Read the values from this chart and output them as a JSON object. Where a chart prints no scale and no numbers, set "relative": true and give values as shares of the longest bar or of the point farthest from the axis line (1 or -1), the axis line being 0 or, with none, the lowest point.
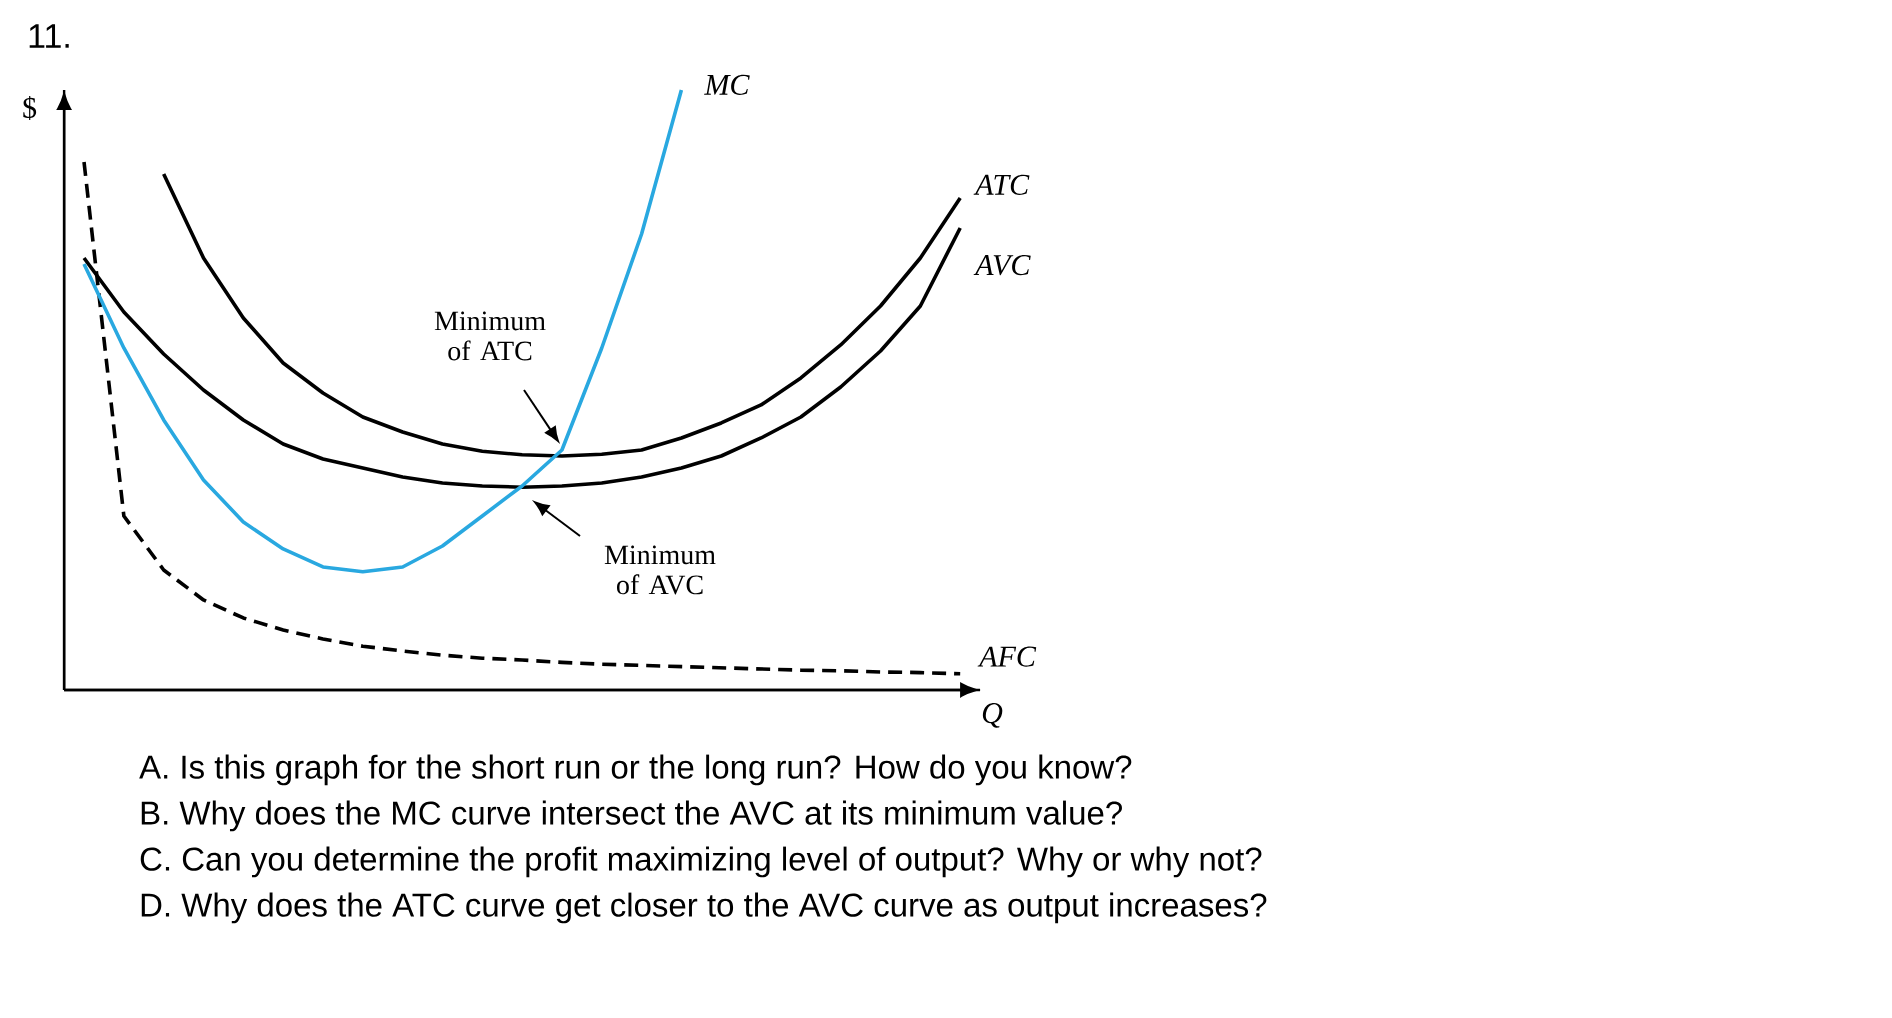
{
  "chart_data": {
    "type": "line",
    "relative": true,
    "title": "11.",
    "xlabel": "Q",
    "ylabel": "$",
    "categories": [
      null,
      null,
      null,
      null,
      null,
      null,
      null,
      null,
      null,
      null,
      null,
      null,
      null,
      null,
      null,
      null,
      null,
      null,
      null,
      null,
      null,
      null,
      null
    ],
    "series": [
      {
        "name": "AFC",
        "color": "#000000",
        "line_style": "dashed",
        "values": [
          0.88,
          0.29,
          0.2,
          0.15,
          0.12,
          0.1,
          0.085,
          0.073,
          0.065,
          0.058,
          0.053,
          0.05,
          0.046,
          0.043,
          0.041,
          0.039,
          0.037,
          0.035,
          0.033,
          0.032,
          0.03,
          0.029,
          0.027
        ]
      },
      {
        "name": "AVC",
        "color": "#000000",
        "values": [
          0.72,
          0.63,
          0.56,
          0.5,
          0.45,
          0.41,
          0.385,
          0.37,
          0.355,
          0.345,
          0.34,
          0.338,
          0.34,
          0.345,
          0.355,
          0.37,
          0.39,
          0.42,
          0.455,
          0.505,
          0.565,
          0.64,
          0.77
        ]
      },
      {
        "name": "ATC",
        "color": "#000000",
        "values": [
          null,
          null,
          0.86,
          0.72,
          0.62,
          0.545,
          0.495,
          0.455,
          0.43,
          0.41,
          0.398,
          0.392,
          0.39,
          0.393,
          0.4,
          0.42,
          0.445,
          0.475,
          0.52,
          0.575,
          0.64,
          0.72,
          0.82
        ]
      },
      {
        "name": "MC",
        "color": "#29a8e0",
        "values": [
          0.71,
          0.57,
          0.45,
          0.35,
          0.28,
          0.235,
          0.205,
          0.197,
          0.205,
          0.24,
          0.29,
          0.34,
          0.4,
          0.57,
          0.76,
          1.0,
          null,
          null,
          null,
          null,
          null,
          null,
          null
        ]
      }
    ],
    "annotations": [
      "Minimum of ATC",
      "Minimum of AVC",
      "A.  Is this graph for the short run or the long run? How do you know?",
      "B.  Why does the MC curve intersect the AVC at its minimum value?",
      "C.  Can you determine the profit maximizing level of output? Why or why not?",
      "D.  Why does the ATC curve get closer to the AVC curve as output increases?"
    ]
  }
}
